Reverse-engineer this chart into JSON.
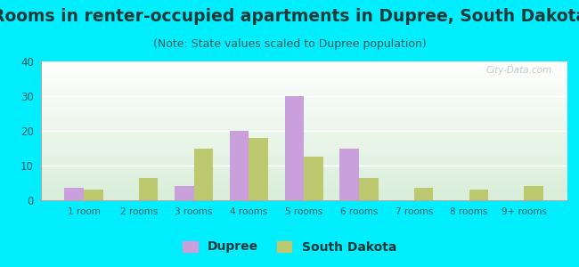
{
  "title": "Rooms in renter-occupied apartments in Dupree, South Dakota",
  "subtitle": "(Note: State values scaled to Dupree population)",
  "categories": [
    "1 room",
    "2 rooms",
    "3 rooms",
    "4 rooms",
    "5 rooms",
    "6 rooms",
    "7 rooms",
    "8 rooms",
    "9+ rooms"
  ],
  "dupree_values": [
    3.5,
    0,
    4,
    20,
    30,
    15,
    0,
    0,
    0
  ],
  "sd_values": [
    3,
    6.5,
    15,
    18,
    12.5,
    6.5,
    3.5,
    3,
    4
  ],
  "dupree_color": "#c9a0dc",
  "sd_color": "#bcc96e",
  "background_outer": "#00eeff",
  "ylim": [
    0,
    40
  ],
  "yticks": [
    0,
    10,
    20,
    30,
    40
  ],
  "bar_width": 0.35,
  "title_fontsize": 13.5,
  "subtitle_fontsize": 9,
  "title_color": "#1a3a3a",
  "subtitle_color": "#2a5a5a",
  "tick_color": "#2a5a5a",
  "watermark_text": "City-Data.com",
  "legend_label_dupree": "Dupree",
  "legend_label_sd": "South Dakota"
}
